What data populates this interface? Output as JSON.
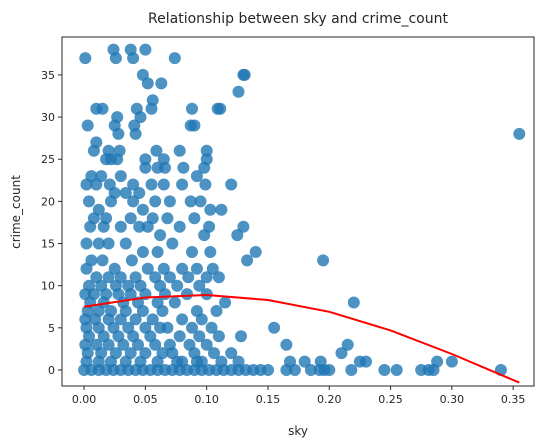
{
  "chart_data": {
    "type": "scatter",
    "title": "Relationship between sky and crime_count",
    "xlabel": "sky",
    "ylabel": "crime_count",
    "xlim": [
      -0.018,
      0.367
    ],
    "ylim": [
      -1.9,
      39.5
    ],
    "xticks": [
      "0.00",
      "0.05",
      "0.10",
      "0.15",
      "0.20",
      "0.25",
      "0.30",
      "0.35"
    ],
    "xtick_values": [
      0.0,
      0.05,
      0.1,
      0.15,
      0.2,
      0.25,
      0.3,
      0.35
    ],
    "yticks": [
      "0",
      "5",
      "10",
      "15",
      "20",
      "25",
      "30",
      "35"
    ],
    "ytick_values": [
      0,
      5,
      10,
      15,
      20,
      25,
      30,
      35
    ],
    "grid": false,
    "point_color": "#1f77b4",
    "fit_color": "#ff0000",
    "fit_curve": {
      "x": [
        0.0,
        0.05,
        0.1,
        0.15,
        0.2,
        0.25,
        0.3,
        0.355
      ],
      "y": [
        7.5,
        8.6,
        8.9,
        8.3,
        6.9,
        4.7,
        1.9,
        -1.5
      ]
    },
    "points": [
      [
        0.001,
        37
      ],
      [
        0.024,
        38
      ],
      [
        0.026,
        37
      ],
      [
        0.038,
        38
      ],
      [
        0.04,
        37
      ],
      [
        0.05,
        38
      ],
      [
        0.074,
        37
      ],
      [
        0.13,
        35
      ],
      [
        0.131,
        35
      ],
      [
        0.048,
        35
      ],
      [
        0.052,
        34
      ],
      [
        0.063,
        34
      ],
      [
        0.126,
        33
      ],
      [
        0.056,
        32
      ],
      [
        0.043,
        31
      ],
      [
        0.046,
        30
      ],
      [
        0.055,
        31
      ],
      [
        0.088,
        31
      ],
      [
        0.111,
        31
      ],
      [
        0.01,
        31
      ],
      [
        0.015,
        31
      ],
      [
        0.109,
        31
      ],
      [
        0.003,
        29
      ],
      [
        0.027,
        30
      ],
      [
        0.087,
        29
      ],
      [
        0.09,
        29
      ],
      [
        0.041,
        29
      ],
      [
        0.025,
        29
      ],
      [
        0.028,
        28
      ],
      [
        0.042,
        28
      ],
      [
        0.355,
        28
      ],
      [
        0.01,
        27
      ],
      [
        0.008,
        26
      ],
      [
        0.02,
        26
      ],
      [
        0.029,
        26
      ],
      [
        0.059,
        26
      ],
      [
        0.078,
        26
      ],
      [
        0.1,
        26
      ],
      [
        0.1,
        25
      ],
      [
        0.018,
        25
      ],
      [
        0.022,
        25
      ],
      [
        0.027,
        25
      ],
      [
        0.05,
        25
      ],
      [
        0.065,
        25
      ],
      [
        0.002,
        22
      ],
      [
        0.006,
        23
      ],
      [
        0.014,
        23
      ],
      [
        0.03,
        23
      ],
      [
        0.05,
        24
      ],
      [
        0.06,
        24
      ],
      [
        0.066,
        24
      ],
      [
        0.081,
        24
      ],
      [
        0.092,
        23
      ],
      [
        0.098,
        24
      ],
      [
        0.12,
        22
      ],
      [
        0.01,
        22
      ],
      [
        0.021,
        22
      ],
      [
        0.025,
        21
      ],
      [
        0.034,
        21
      ],
      [
        0.04,
        22
      ],
      [
        0.045,
        21
      ],
      [
        0.055,
        22
      ],
      [
        0.065,
        22
      ],
      [
        0.08,
        22
      ],
      [
        0.099,
        22
      ],
      [
        0.004,
        20
      ],
      [
        0.012,
        19
      ],
      [
        0.022,
        20
      ],
      [
        0.04,
        20
      ],
      [
        0.048,
        19
      ],
      [
        0.058,
        20
      ],
      [
        0.07,
        20
      ],
      [
        0.087,
        20
      ],
      [
        0.095,
        20
      ],
      [
        0.103,
        19
      ],
      [
        0.112,
        19
      ],
      [
        0.008,
        18
      ],
      [
        0.018,
        18
      ],
      [
        0.038,
        18
      ],
      [
        0.056,
        18
      ],
      [
        0.068,
        18
      ],
      [
        0.09,
        18
      ],
      [
        0.102,
        17
      ],
      [
        0.13,
        17
      ],
      [
        0.005,
        17
      ],
      [
        0.016,
        17
      ],
      [
        0.03,
        17
      ],
      [
        0.045,
        17
      ],
      [
        0.052,
        17
      ],
      [
        0.062,
        16
      ],
      [
        0.078,
        17
      ],
      [
        0.098,
        16
      ],
      [
        0.125,
        16
      ],
      [
        0.002,
        15
      ],
      [
        0.012,
        15
      ],
      [
        0.02,
        15
      ],
      [
        0.034,
        15
      ],
      [
        0.048,
        14
      ],
      [
        0.06,
        14
      ],
      [
        0.072,
        15
      ],
      [
        0.088,
        14
      ],
      [
        0.103,
        14
      ],
      [
        0.14,
        14
      ],
      [
        0.133,
        13
      ],
      [
        0.006,
        13
      ],
      [
        0.015,
        13
      ],
      [
        0.025,
        12
      ],
      [
        0.039,
        13
      ],
      [
        0.052,
        12
      ],
      [
        0.065,
        12
      ],
      [
        0.08,
        12
      ],
      [
        0.092,
        12
      ],
      [
        0.11,
        11
      ],
      [
        0.195,
        13
      ],
      [
        0.002,
        12
      ],
      [
        0.01,
        11
      ],
      [
        0.02,
        11
      ],
      [
        0.03,
        11
      ],
      [
        0.042,
        11
      ],
      [
        0.058,
        11
      ],
      [
        0.07,
        11
      ],
      [
        0.085,
        11
      ],
      [
        0.1,
        11
      ],
      [
        0.105,
        12
      ],
      [
        0.004,
        10
      ],
      [
        0.014,
        10
      ],
      [
        0.026,
        10
      ],
      [
        0.036,
        10
      ],
      [
        0.046,
        10
      ],
      [
        0.062,
        10
      ],
      [
        0.076,
        10
      ],
      [
        0.094,
        10
      ],
      [
        0.001,
        9
      ],
      [
        0.008,
        9
      ],
      [
        0.018,
        9
      ],
      [
        0.028,
        9
      ],
      [
        0.038,
        9
      ],
      [
        0.05,
        9
      ],
      [
        0.066,
        9
      ],
      [
        0.084,
        9
      ],
      [
        0.1,
        9
      ],
      [
        0.115,
        8
      ],
      [
        0.005,
        8
      ],
      [
        0.016,
        8
      ],
      [
        0.032,
        8
      ],
      [
        0.044,
        8
      ],
      [
        0.06,
        8
      ],
      [
        0.074,
        8
      ],
      [
        0.092,
        7
      ],
      [
        0.108,
        7
      ],
      [
        0.22,
        8
      ],
      [
        0.003,
        7
      ],
      [
        0.012,
        7
      ],
      [
        0.022,
        7
      ],
      [
        0.034,
        7
      ],
      [
        0.048,
        7
      ],
      [
        0.064,
        7
      ],
      [
        0.08,
        6
      ],
      [
        0.096,
        6
      ],
      [
        0.001,
        6
      ],
      [
        0.009,
        6
      ],
      [
        0.02,
        6
      ],
      [
        0.03,
        6
      ],
      [
        0.042,
        6
      ],
      [
        0.056,
        6
      ],
      [
        0.068,
        5
      ],
      [
        0.088,
        5
      ],
      [
        0.104,
        5
      ],
      [
        0.128,
        4
      ],
      [
        0.002,
        5
      ],
      [
        0.012,
        5
      ],
      [
        0.024,
        5
      ],
      [
        0.036,
        5
      ],
      [
        0.05,
        5
      ],
      [
        0.062,
        5
      ],
      [
        0.078,
        4
      ],
      [
        0.094,
        4
      ],
      [
        0.11,
        4
      ],
      [
        0.155,
        5
      ],
      [
        0.004,
        4
      ],
      [
        0.016,
        4
      ],
      [
        0.028,
        4
      ],
      [
        0.04,
        4
      ],
      [
        0.054,
        4
      ],
      [
        0.07,
        3
      ],
      [
        0.086,
        3
      ],
      [
        0.1,
        3
      ],
      [
        0.165,
        3
      ],
      [
        0.215,
        3
      ],
      [
        0.001,
        3
      ],
      [
        0.01,
        3
      ],
      [
        0.02,
        3
      ],
      [
        0.032,
        3
      ],
      [
        0.044,
        3
      ],
      [
        0.058,
        3
      ],
      [
        0.072,
        2
      ],
      [
        0.09,
        2
      ],
      [
        0.106,
        2
      ],
      [
        0.12,
        2
      ],
      [
        0.003,
        2
      ],
      [
        0.014,
        2
      ],
      [
        0.026,
        2
      ],
      [
        0.038,
        2
      ],
      [
        0.05,
        2
      ],
      [
        0.064,
        2
      ],
      [
        0.08,
        1
      ],
      [
        0.096,
        1
      ],
      [
        0.21,
        2
      ],
      [
        0.002,
        1
      ],
      [
        0.012,
        1
      ],
      [
        0.022,
        1
      ],
      [
        0.034,
        1
      ],
      [
        0.046,
        1
      ],
      [
        0.06,
        1
      ],
      [
        0.076,
        1
      ],
      [
        0.092,
        1
      ],
      [
        0.112,
        1
      ],
      [
        0.126,
        1
      ],
      [
        0.168,
        1
      ],
      [
        0.18,
        1
      ],
      [
        0.193,
        1
      ],
      [
        0.225,
        1
      ],
      [
        0.23,
        1
      ],
      [
        0.288,
        1
      ],
      [
        0.3,
        1
      ],
      [
        0.0,
        0
      ],
      [
        0.006,
        0
      ],
      [
        0.012,
        0
      ],
      [
        0.018,
        0
      ],
      [
        0.024,
        0
      ],
      [
        0.03,
        0
      ],
      [
        0.036,
        0
      ],
      [
        0.042,
        0
      ],
      [
        0.048,
        0
      ],
      [
        0.054,
        0
      ],
      [
        0.06,
        0
      ],
      [
        0.066,
        0
      ],
      [
        0.072,
        0
      ],
      [
        0.078,
        0
      ],
      [
        0.084,
        0
      ],
      [
        0.09,
        0
      ],
      [
        0.096,
        0
      ],
      [
        0.102,
        0
      ],
      [
        0.108,
        0
      ],
      [
        0.114,
        0
      ],
      [
        0.12,
        0
      ],
      [
        0.126,
        0
      ],
      [
        0.132,
        0
      ],
      [
        0.138,
        0
      ],
      [
        0.144,
        0
      ],
      [
        0.15,
        0
      ],
      [
        0.165,
        0
      ],
      [
        0.172,
        0
      ],
      [
        0.185,
        0
      ],
      [
        0.192,
        0
      ],
      [
        0.196,
        0
      ],
      [
        0.2,
        0
      ],
      [
        0.218,
        0
      ],
      [
        0.245,
        0
      ],
      [
        0.255,
        0
      ],
      [
        0.275,
        0
      ],
      [
        0.281,
        0
      ],
      [
        0.285,
        0
      ],
      [
        0.34,
        0
      ]
    ]
  }
}
